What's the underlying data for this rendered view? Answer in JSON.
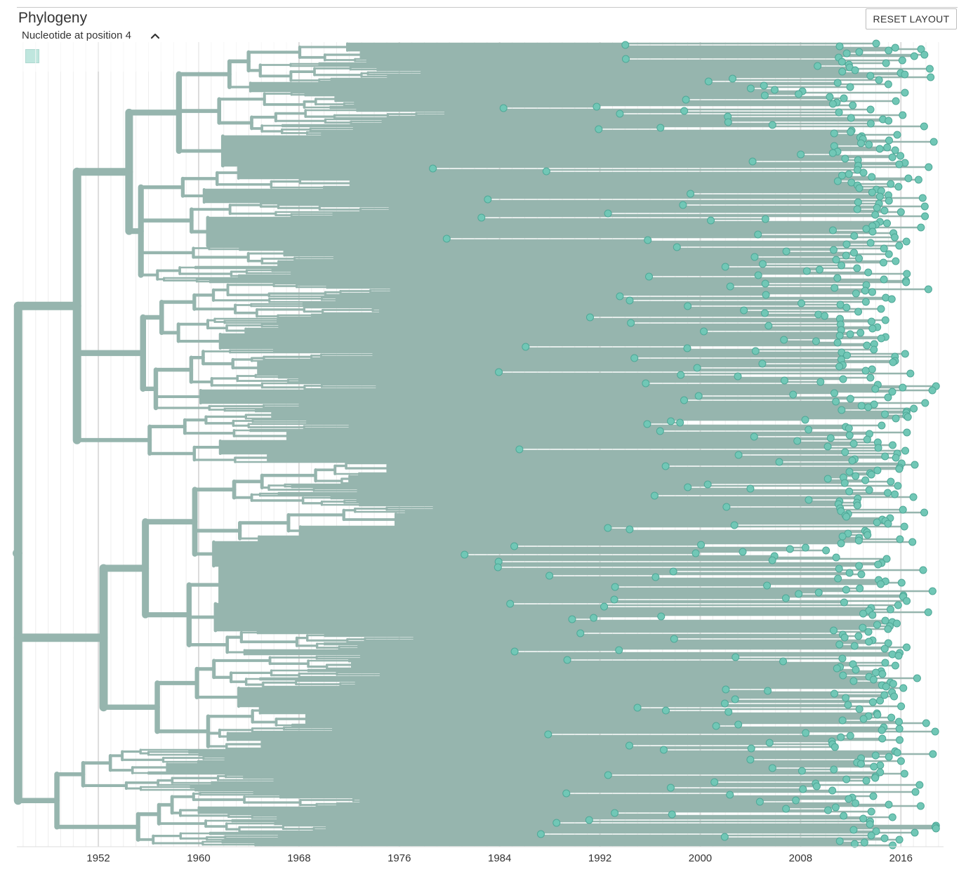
{
  "panel": {
    "title": "Phylogeny",
    "reset_button": "RESET LAYOUT"
  },
  "legend": {
    "title": "Nucleotide at position 4",
    "toggle_icon": "chevron-up-icon",
    "swatch_color": "#71c7b6"
  },
  "colors": {
    "branch": "#96b5ae",
    "tip_fill": "#71c7b6",
    "tip_stroke": "#4fa897",
    "grid_major": "#dcdcdc",
    "grid_minor": "#eeeeee"
  },
  "chart_data": {
    "type": "phylogenetic-tree",
    "xaxis": {
      "unit": "year",
      "range": [
        1945.5,
        2019.4
      ],
      "ticks": [
        1952,
        1960,
        1968,
        1976,
        1984,
        1992,
        2000,
        2008,
        2016
      ],
      "tick_labels": [
        "1952",
        "1960",
        "1968",
        "1976",
        "1984",
        "1992",
        "2000",
        "2008",
        "2016"
      ],
      "minor_tick_step": 1
    },
    "grid": true,
    "layout": "rectangular"
  }
}
